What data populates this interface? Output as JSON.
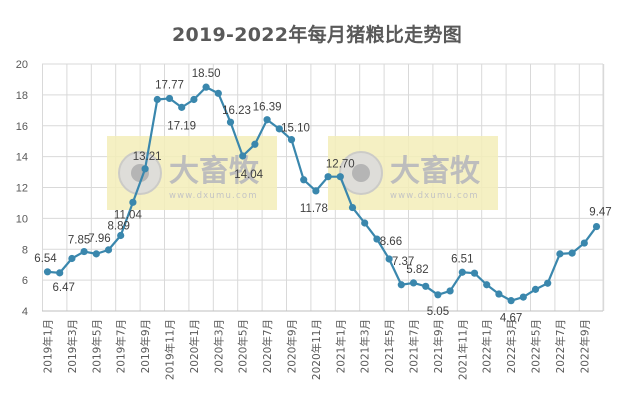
{
  "chart_data": {
    "type": "line",
    "title": "2019-2022年每月猪粮比走势图",
    "xlabel": "",
    "ylabel": "",
    "ylim": [
      4,
      20
    ],
    "yticks": [
      4,
      6,
      8,
      10,
      12,
      14,
      16,
      18,
      20
    ],
    "grid": true,
    "legend": null,
    "x": [
      "2019年1月",
      "2019年2月",
      "2019年3月",
      "2019年4月",
      "2019年5月",
      "2019年6月",
      "2019年7月",
      "2019年8月",
      "2019年9月",
      "2019年10月",
      "2019年11月",
      "2019年12月",
      "2020年1月",
      "2020年2月",
      "2020年3月",
      "2020年4月",
      "2020年5月",
      "2020年6月",
      "2020年7月",
      "2020年8月",
      "2020年9月",
      "2020年10月",
      "2020年11月",
      "2020年12月",
      "2021年1月",
      "2021年2月",
      "2021年3月",
      "2021年4月",
      "2021年5月",
      "2021年6月",
      "2021年7月",
      "2021年8月",
      "2021年9月",
      "2021年10月",
      "2021年11月",
      "2021年12月",
      "2022年1月",
      "2022年2月",
      "2022年3月",
      "2022年4月",
      "2022年5月",
      "2022年6月",
      "2022年7月",
      "2022年8月",
      "2022年9月",
      "2022年10月"
    ],
    "x_tick_labels": [
      "2019年1月",
      "2019年3月",
      "2019年5月",
      "2019年7月",
      "2019年9月",
      "2019年11月",
      "2020年1月",
      "2020年3月",
      "2020年5月",
      "2020年7月",
      "2020年9月",
      "2020年11月",
      "2021年1月",
      "2021年3月",
      "2021年5月",
      "2021年7月",
      "2021年9月",
      "2021年11月",
      "2022年1月",
      "2022年3月",
      "2022年5月",
      "2022年7月",
      "2022年9月"
    ],
    "series": [
      {
        "name": "猪粮比",
        "color": "#3a87ad",
        "values": [
          6.54,
          6.47,
          7.4,
          7.85,
          7.7,
          7.96,
          8.89,
          11.04,
          13.21,
          17.7,
          17.77,
          17.19,
          17.7,
          18.5,
          18.1,
          16.23,
          14.04,
          14.8,
          16.39,
          15.8,
          15.1,
          12.5,
          11.78,
          12.7,
          12.7,
          10.7,
          9.7,
          8.66,
          7.37,
          5.7,
          5.82,
          5.6,
          5.05,
          5.3,
          6.51,
          6.45,
          5.7,
          5.1,
          4.67,
          4.9,
          5.4,
          5.8,
          7.7,
          7.75,
          8.4,
          9.47
        ]
      }
    ],
    "data_labels": [
      {
        "index": 0,
        "text": "6.54"
      },
      {
        "index": 1,
        "text": "6.47"
      },
      {
        "index": 3,
        "text": "7.85"
      },
      {
        "index": 5,
        "text": "7.96"
      },
      {
        "index": 6,
        "text": "8.89"
      },
      {
        "index": 7,
        "text": "11.04"
      },
      {
        "index": 8,
        "text": "13.21"
      },
      {
        "index": 10,
        "text": "17.77"
      },
      {
        "index": 11,
        "text": "17.19"
      },
      {
        "index": 13,
        "text": "18.50"
      },
      {
        "index": 15,
        "text": "16.23"
      },
      {
        "index": 16,
        "text": "14.04"
      },
      {
        "index": 18,
        "text": "16.39"
      },
      {
        "index": 20,
        "text": "15.10"
      },
      {
        "index": 22,
        "text": "11.78"
      },
      {
        "index": 24,
        "text": "12.70"
      },
      {
        "index": 27,
        "text": "8.66"
      },
      {
        "index": 28,
        "text": "7.37"
      },
      {
        "index": 30,
        "text": "5.82"
      },
      {
        "index": 32,
        "text": "5.05"
      },
      {
        "index": 34,
        "text": "6.51"
      },
      {
        "index": 38,
        "text": "4.67"
      },
      {
        "index": 45,
        "text": "9.47"
      }
    ]
  },
  "watermark": {
    "brand": "大畜牧",
    "url": "www.dxumu.com"
  },
  "colors": {
    "line": "#3a87ad",
    "grid": "#d9d9d9",
    "text": "#595959",
    "watermark_bg": "#f3edb8"
  }
}
